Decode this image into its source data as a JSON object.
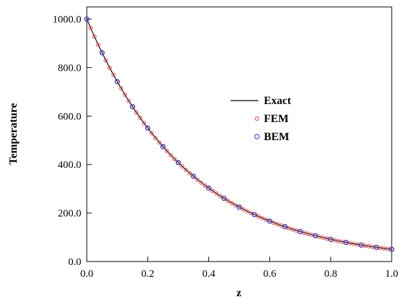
{
  "chart_data": {
    "type": "line",
    "xlabel": "z",
    "ylabel": "Temperature",
    "xlim": [
      0.0,
      1.0
    ],
    "ylim": [
      0.0,
      1050.0
    ],
    "grid": false,
    "legend_position": "center-right",
    "x_ticks": [
      {
        "value": 0.0,
        "label": "0.0"
      },
      {
        "value": 0.2,
        "label": "0.2"
      },
      {
        "value": 0.4,
        "label": "0.4"
      },
      {
        "value": 0.6,
        "label": "0.6"
      },
      {
        "value": 0.8,
        "label": "0.8"
      },
      {
        "value": 1.0,
        "label": "1.0"
      }
    ],
    "y_ticks": [
      {
        "value": 0.0,
        "label": "0.0"
      },
      {
        "value": 200.0,
        "label": "200.0"
      },
      {
        "value": 400.0,
        "label": "400.0"
      },
      {
        "value": 600.0,
        "label": "600.0"
      },
      {
        "value": 800.0,
        "label": "800.0"
      },
      {
        "value": 1000.0,
        "label": "1000.0"
      }
    ],
    "series": [
      {
        "name": "Exact",
        "style": "line",
        "color": "#000000",
        "x": [
          0.0,
          0.05,
          0.1,
          0.15,
          0.2,
          0.25,
          0.3,
          0.35,
          0.4,
          0.45,
          0.5,
          0.55,
          0.6,
          0.65,
          0.7,
          0.75,
          0.8,
          0.85,
          0.9,
          0.95,
          1.0
        ],
        "y": [
          1000.0,
          861.3,
          741.8,
          638.9,
          550.3,
          474.0,
          408.2,
          351.6,
          302.9,
          260.8,
          224.7,
          193.5,
          166.7,
          143.6,
          123.6,
          106.5,
          91.7,
          79.0,
          68.1,
          58.6,
          50.5
        ]
      },
      {
        "name": "FEM",
        "style": "markers",
        "color": "#e05a5a",
        "x": [
          0.0,
          0.0125,
          0.025,
          0.0375,
          0.05,
          0.0625,
          0.075,
          0.0875,
          0.1,
          0.1125,
          0.125,
          0.1375,
          0.15,
          0.1625,
          0.175,
          0.1875,
          0.2,
          0.2125,
          0.225,
          0.2375,
          0.25,
          0.2625,
          0.275,
          0.2875,
          0.3,
          0.3125,
          0.325,
          0.3375,
          0.35,
          0.3625,
          0.375,
          0.3875,
          0.4,
          0.4125,
          0.425,
          0.4375,
          0.45,
          0.4625,
          0.475,
          0.4875,
          0.5,
          0.5125,
          0.525,
          0.5375,
          0.55,
          0.5625,
          0.575,
          0.5875,
          0.6,
          0.6125,
          0.625,
          0.6375,
          0.65,
          0.6625,
          0.675,
          0.6875,
          0.7,
          0.7125,
          0.725,
          0.7375,
          0.75,
          0.7625,
          0.775,
          0.7875,
          0.8,
          0.8125,
          0.825,
          0.8375,
          0.85,
          0.8625,
          0.875,
          0.8875,
          0.9,
          0.9125,
          0.925,
          0.9375,
          0.95,
          0.9625,
          0.975,
          0.9875,
          1.0
        ],
        "y": [
          1000.0,
          963.3,
          927.9,
          893.8,
          861.0,
          829.4,
          798.9,
          769.6,
          741.4,
          714.2,
          688.0,
          662.7,
          638.4,
          614.9,
          592.4,
          570.6,
          549.7,
          529.5,
          510.0,
          491.3,
          473.3,
          455.9,
          439.2,
          423.0,
          407.5,
          392.5,
          378.1,
          364.2,
          350.9,
          338.0,
          325.6,
          313.6,
          302.1,
          291.0,
          280.4,
          270.1,
          260.2,
          250.6,
          241.4,
          232.6,
          224.0,
          215.8,
          207.9,
          200.3,
          192.9,
          185.8,
          179.0,
          172.4,
          166.1,
          160.0,
          154.1,
          148.5,
          143.0,
          137.8,
          132.7,
          127.9,
          123.2,
          118.7,
          114.3,
          110.1,
          106.1,
          102.2,
          98.4,
          94.8,
          91.3,
          88.0,
          84.8,
          81.6,
          78.7,
          75.8,
          73.0,
          70.3,
          67.8,
          65.3,
          62.9,
          60.6,
          58.3,
          56.2,
          54.1,
          52.2,
          50.2
        ]
      },
      {
        "name": "BEM",
        "style": "markers",
        "color": "#3a3ad0",
        "x": [
          0.0,
          0.05,
          0.1,
          0.15,
          0.2,
          0.25,
          0.3,
          0.35,
          0.4,
          0.45,
          0.5,
          0.55,
          0.6,
          0.65,
          0.7,
          0.75,
          0.8,
          0.85,
          0.9,
          0.95,
          1.0
        ],
        "y": [
          1000.0,
          861.3,
          741.8,
          638.9,
          550.3,
          474.0,
          408.2,
          351.6,
          302.9,
          260.8,
          224.7,
          193.5,
          166.7,
          143.6,
          123.6,
          106.5,
          91.7,
          79.0,
          68.1,
          58.6,
          50.5
        ]
      }
    ]
  }
}
